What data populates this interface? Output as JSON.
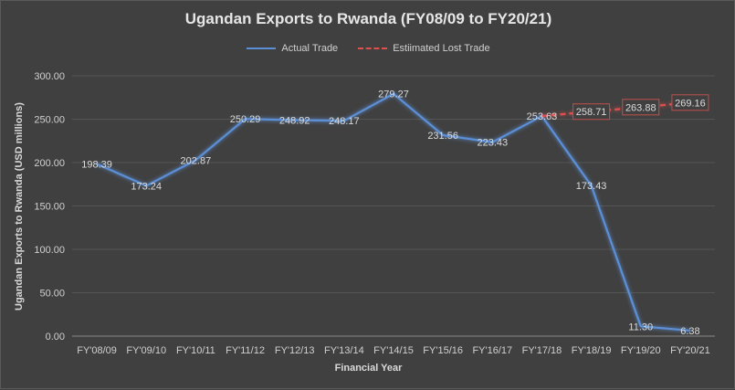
{
  "chart_data": {
    "type": "line",
    "title": "Ugandan Exports to Rwanda (FY08/09 to FY20/21)",
    "xlabel": "Financial Year",
    "ylabel": "Ugandan Exports to Rwanda (USD millions)",
    "ylim": [
      0,
      300
    ],
    "yticks": [
      "0.00",
      "50.00",
      "100.00",
      "150.00",
      "200.00",
      "250.00",
      "300.00"
    ],
    "grid": "horizontal",
    "legend_position": "top",
    "categories": [
      "FY'08/09",
      "FY'09/10",
      "FY'10/11",
      "FY'11/12",
      "FY'12/13",
      "FY'13/14",
      "FY'14/15",
      "FY'15/16",
      "FY'16/17",
      "FY'17/18",
      "FY'18/19",
      "FY'19/20",
      "FY'20/21"
    ],
    "series": [
      {
        "name": "Actual Trade",
        "color": "#5b8fd6",
        "style": "solid",
        "values": [
          198.39,
          173.24,
          202.87,
          250.29,
          248.92,
          248.17,
          279.27,
          231.56,
          223.43,
          253.63,
          173.43,
          11.3,
          6.38
        ],
        "labels": [
          "198.39",
          "173.24",
          "202.87",
          "250.29",
          "248.92",
          "248.17",
          "279.27",
          "231.56",
          "223.43",
          "253.63",
          "173.43",
          "11.30",
          "6.38"
        ]
      },
      {
        "name": "Estiimated Lost Trade",
        "color": "#e0504d",
        "style": "dashed",
        "values": [
          null,
          null,
          null,
          null,
          null,
          null,
          null,
          null,
          null,
          253.63,
          258.71,
          263.88,
          269.16
        ],
        "labels": [
          null,
          null,
          null,
          null,
          null,
          null,
          null,
          null,
          null,
          null,
          "258.71",
          "263.88",
          "269.16"
        ]
      }
    ]
  }
}
